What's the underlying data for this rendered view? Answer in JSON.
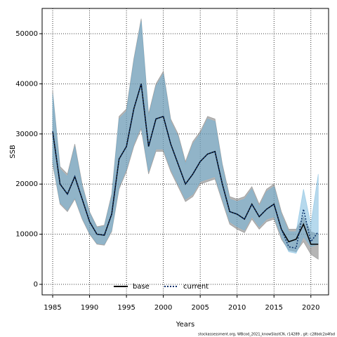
{
  "chart_data": {
    "type": "line",
    "xlabel": "Years",
    "ylabel": "SSB",
    "footnote": "stockassessment.org, WBcod_2021_knowSlastCN, r14289 , git: c28bdc2a4fad",
    "x": [
      1985,
      1986,
      1987,
      1988,
      1989,
      1990,
      1991,
      1992,
      1993,
      1994,
      1995,
      1996,
      1997,
      1998,
      1999,
      2000,
      2001,
      2002,
      2003,
      2004,
      2005,
      2006,
      2007,
      2008,
      2009,
      2010,
      2011,
      2012,
      2013,
      2014,
      2015,
      2016,
      2017,
      2018,
      2019,
      2020,
      2021
    ],
    "series": [
      {
        "name": "base",
        "color": "#000000",
        "band_color": "rgba(120,120,120,0.55)",
        "dash": false,
        "values": [
          30500,
          20000,
          18000,
          21500,
          17000,
          12500,
          10000,
          9800,
          14000,
          25000,
          27500,
          35000,
          40000,
          27500,
          33000,
          33500,
          28000,
          24000,
          20000,
          22000,
          24500,
          26000,
          26500,
          20000,
          14500,
          14000,
          13000,
          16000,
          13500,
          15000,
          16000,
          11000,
          8500,
          9000,
          12000,
          8000,
          8000
        ],
        "upper": [
          38500,
          23500,
          22000,
          28000,
          20000,
          14500,
          11500,
          11800,
          18000,
          33500,
          35000,
          45000,
          53000,
          34000,
          40000,
          42500,
          33000,
          30000,
          24500,
          28500,
          30500,
          33500,
          33000,
          24000,
          17500,
          17000,
          17500,
          19500,
          16000,
          19000,
          20000,
          14500,
          11000,
          11000,
          13500,
          10500,
          10000
        ],
        "lower": [
          24000,
          16000,
          14500,
          17000,
          13000,
          10000,
          8000,
          7800,
          10500,
          19000,
          22500,
          27500,
          31000,
          22000,
          26500,
          26500,
          22500,
          19500,
          16500,
          17500,
          20000,
          20500,
          21000,
          16500,
          12000,
          11000,
          10300,
          13000,
          11000,
          12500,
          13000,
          9000,
          6800,
          6500,
          8500,
          6000,
          5000
        ]
      },
      {
        "name": "current",
        "color": "#08306b",
        "band_color": "rgba(110,180,220,0.5)",
        "dash": true,
        "values": [
          30500,
          20000,
          18000,
          21500,
          17000,
          12500,
          10000,
          9800,
          14000,
          25000,
          27500,
          35000,
          40000,
          27500,
          33000,
          33500,
          28000,
          24000,
          20000,
          22000,
          24500,
          26000,
          26500,
          20000,
          14500,
          14000,
          13000,
          16000,
          13500,
          15000,
          16000,
          11000,
          7500,
          7200,
          15000,
          8500,
          10500
        ],
        "upper": [
          38000,
          23000,
          21500,
          27500,
          19500,
          14300,
          11300,
          11600,
          17500,
          33000,
          34500,
          44500,
          52500,
          33500,
          39500,
          42000,
          32500,
          29500,
          24000,
          28000,
          30000,
          33000,
          32500,
          23500,
          17000,
          16500,
          17000,
          19000,
          15500,
          18500,
          19500,
          14000,
          10500,
          10500,
          19000,
          12000,
          22000
        ],
        "lower": [
          24500,
          16300,
          14800,
          17300,
          13300,
          10200,
          8200,
          8000,
          10800,
          19500,
          23000,
          28000,
          31500,
          22500,
          27000,
          27000,
          23000,
          20000,
          17000,
          18000,
          20500,
          21000,
          21500,
          17000,
          12500,
          11500,
          10800,
          13500,
          11500,
          13000,
          13500,
          9500,
          6500,
          6200,
          9500,
          7500,
          8000
        ]
      }
    ],
    "xlim": [
      1983.57,
      2022.4
    ],
    "ylim": [
      -2100,
      55040
    ],
    "xticks": [
      1985,
      1990,
      1995,
      2000,
      2005,
      2010,
      2015,
      2020
    ],
    "yticks": [
      0,
      10000,
      20000,
      30000,
      40000,
      50000
    ],
    "grid": true,
    "legend": "bottom"
  }
}
